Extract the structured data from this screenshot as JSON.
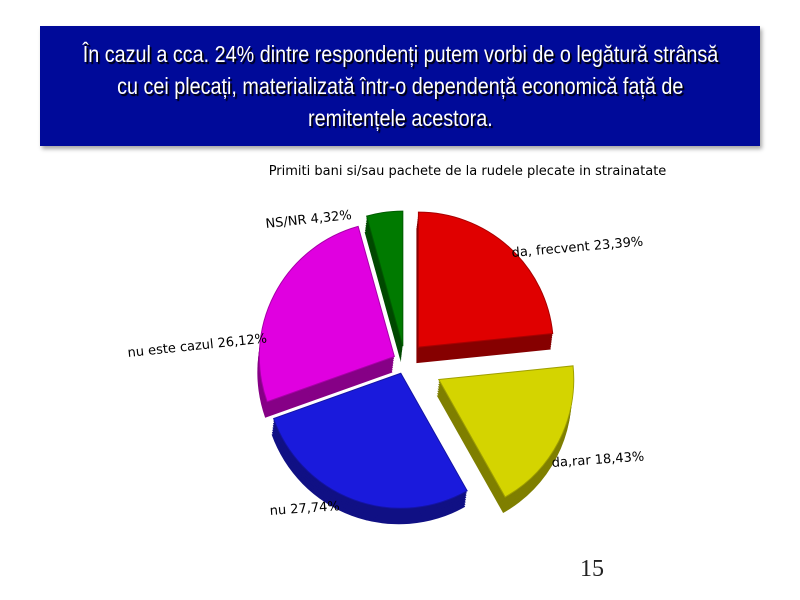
{
  "slide": {
    "title_lines": [
      "În cazul a cca. 24% dintre respondenți putem vorbi de o legătură strânsă",
      "cu cei plecați, materializată într-o dependență economică față de",
      "remitențele acestora."
    ],
    "page_number": "15"
  },
  "colors": {
    "title_bg": "#000a99",
    "da_frecvent": "#e00000",
    "da_rar": "#d4d400",
    "nu": "#1a1adc",
    "nu_este_cazul": "#e000e0",
    "ns_nr": "#007a00"
  },
  "chart_data": {
    "type": "pie",
    "title": "Primiti bani si/sau pachete de la rudele plecate in strainatate",
    "slices": [
      {
        "label": "da, frecvent",
        "value": 23.39,
        "value_label": "23,39%"
      },
      {
        "label": "da,rar",
        "value": 18.43,
        "value_label": "18,43%"
      },
      {
        "label": "nu",
        "value": 27.74,
        "value_label": "27,74%"
      },
      {
        "label": "nu este cazul",
        "value": 26.12,
        "value_label": "26,12%"
      },
      {
        "label": "NS/NR",
        "value": 4.32,
        "value_label": "4,32%"
      }
    ]
  }
}
